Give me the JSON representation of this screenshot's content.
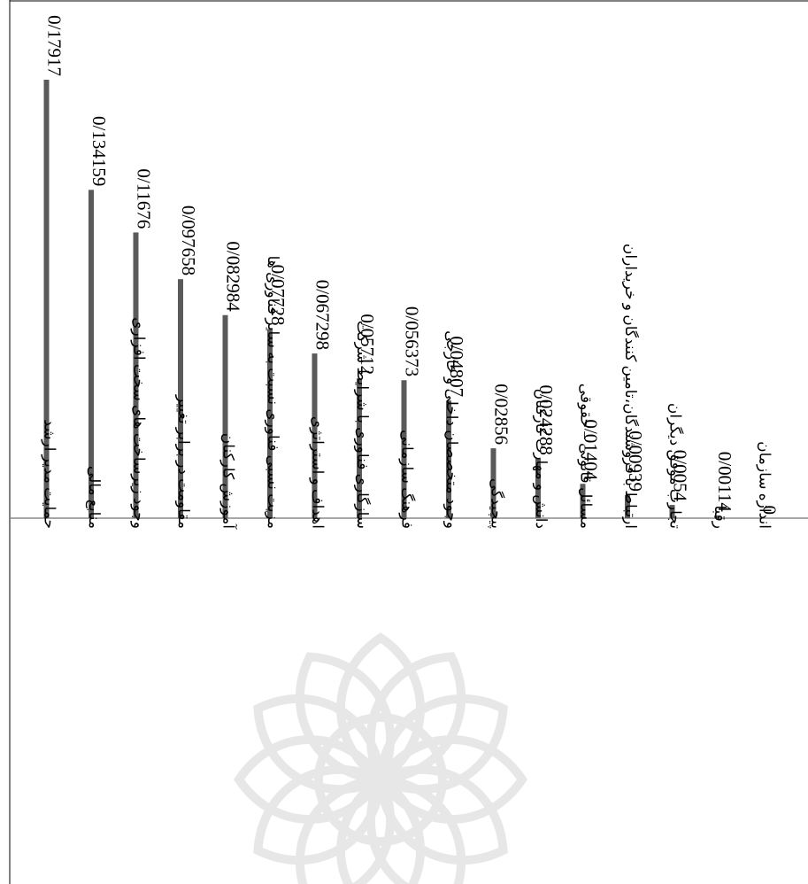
{
  "chart_data": {
    "type": "bar",
    "orientation": "rotated-90-clockwise",
    "title": "",
    "xlabel": "",
    "ylabel": "",
    "bar_color": "#5a5a5a",
    "grid": false,
    "legend": "none",
    "ylim": [
      0,
      0.18
    ],
    "categories": [
      "حمایت مدیر ارشد",
      "منابع مالی",
      "وجود زیرساخت های سخت افزاری",
      "مقاومت در برابر تغییر",
      "آموزش کارکنان",
      "مزیت نسبی فناوری نسبت به سایر فناوری ها",
      "اهداف و استراتژی",
      "سازگاری فناوری با شرایط شرکت",
      "فرهنگ سازمانی",
      "وجود متخصصان داخلی و خارجی",
      "پیچیدگی",
      "دانش و مهارت کارکنان",
      "مسائل قانونی – حقوقی",
      "ارتباط با فروشندگان،تامین کنندگان و خریداران",
      "تجارب موفق دیگران",
      "رقبا",
      "اندازه سازمان"
    ],
    "values": [
      0.17917,
      0.134159,
      0.11676,
      0.097658,
      0.082984,
      0.07728,
      0.067298,
      0.05712,
      0.056373,
      0.04807,
      0.02856,
      0.024288,
      0.01404,
      0.00939,
      0.0054,
      0.00114,
      0
    ],
    "value_labels": [
      "0/17917",
      "0/134159",
      "0/11676",
      "0/097658",
      "0/082984",
      "0/07728",
      "0/067298",
      "0/05712",
      "0/056373",
      "0/04807",
      "0/02856",
      "0/024288",
      "0/01404",
      "0/00939",
      "0/0054",
      "0/00114",
      "0"
    ]
  }
}
